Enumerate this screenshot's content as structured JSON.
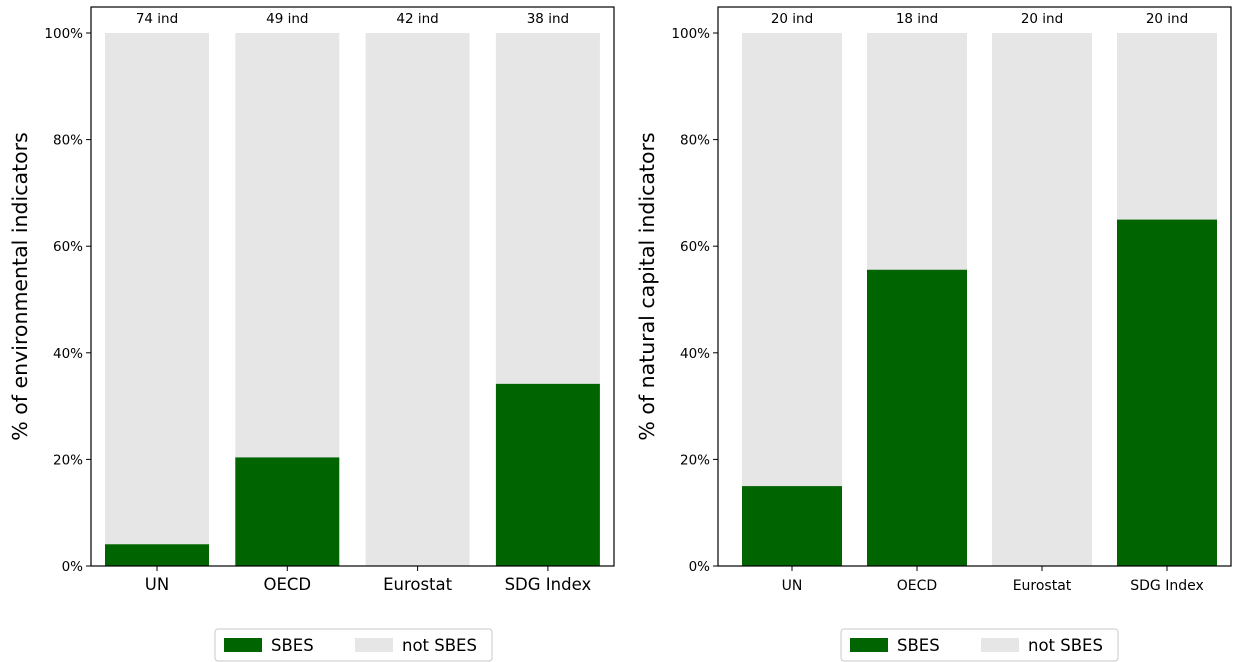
{
  "chart_data": [
    {
      "type": "bar",
      "stacked": true,
      "categories": [
        "UN",
        "OECD",
        "Eurostat",
        "SDG Index"
      ],
      "counts": [
        "74 ind",
        "49 ind",
        "42 ind",
        "38 ind"
      ],
      "series": [
        {
          "name": "SBES",
          "color": "#006400",
          "values": [
            4.1,
            20.4,
            0,
            34.2
          ]
        },
        {
          "name": "not SBES",
          "color": "#e6e6e6",
          "values": [
            95.9,
            79.6,
            100,
            65.8
          ]
        }
      ],
      "ylabel": "% of environmental indicators",
      "ylim": [
        0,
        100
      ],
      "yticks": [
        "0%",
        "20%",
        "40%",
        "60%",
        "80%",
        "100%"
      ],
      "grid": false,
      "legend_position": "bottom-center"
    },
    {
      "type": "bar",
      "stacked": true,
      "categories": [
        "UN",
        "OECD",
        "Eurostat",
        "SDG Index"
      ],
      "counts": [
        "20 ind",
        "18 ind",
        "20 ind",
        "20 ind"
      ],
      "series": [
        {
          "name": "SBES",
          "color": "#006400",
          "values": [
            15,
            55.6,
            0,
            65
          ]
        },
        {
          "name": "not SBES",
          "color": "#e6e6e6",
          "values": [
            85,
            44.4,
            100,
            35
          ]
        }
      ],
      "ylabel": "% of natural capital indicators",
      "ylim": [
        0,
        100
      ],
      "yticks": [
        "0%",
        "20%",
        "40%",
        "60%",
        "80%",
        "100%"
      ],
      "grid": false,
      "legend_position": "bottom-center"
    }
  ]
}
